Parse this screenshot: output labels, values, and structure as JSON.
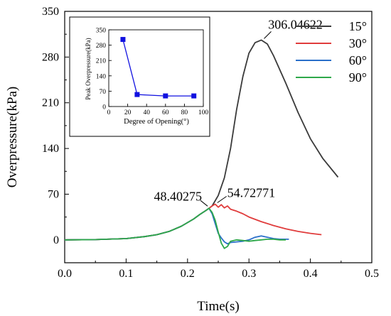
{
  "chart_data": [
    {
      "type": "line",
      "title": "",
      "xlabel": "Time(s)",
      "ylabel": "Overpressure(kPa)",
      "xlim": [
        0.0,
        0.5
      ],
      "ylim": [
        -35,
        350
      ],
      "x_ticks": [
        0.0,
        0.1,
        0.2,
        0.3,
        0.4,
        0.5
      ],
      "x_tick_labels": [
        "0.0",
        "0.1",
        "0.2",
        "0.3",
        "0.4",
        "0.5"
      ],
      "y_ticks": [
        0,
        70,
        140,
        210,
        280,
        350
      ],
      "y_tick_labels": [
        "0",
        "70",
        "140",
        "210",
        "280",
        "350"
      ],
      "legend_position": "top-right",
      "grid": false,
      "series": [
        {
          "name": "15°",
          "color": "#3a3a3a",
          "x": [
            0.0,
            0.05,
            0.1,
            0.13,
            0.15,
            0.17,
            0.19,
            0.21,
            0.22,
            0.23,
            0.235,
            0.24,
            0.25,
            0.26,
            0.27,
            0.28,
            0.29,
            0.3,
            0.31,
            0.32,
            0.33,
            0.34,
            0.36,
            0.38,
            0.4,
            0.42,
            0.445
          ],
          "y": [
            0,
            0.5,
            2,
            5,
            8,
            13,
            21,
            32,
            39,
            45,
            48.4,
            52,
            68,
            95,
            140,
            200,
            250,
            286,
            302,
            306.04622,
            300,
            282,
            240,
            195,
            155,
            125,
            96
          ]
        },
        {
          "name": "30°",
          "color": "#e03c3c",
          "x": [
            0.0,
            0.05,
            0.1,
            0.13,
            0.15,
            0.17,
            0.19,
            0.21,
            0.22,
            0.23,
            0.235,
            0.24,
            0.245,
            0.25,
            0.255,
            0.26,
            0.265,
            0.27,
            0.28,
            0.29,
            0.3,
            0.32,
            0.34,
            0.36,
            0.38,
            0.4,
            0.418
          ],
          "y": [
            0,
            0.5,
            2,
            5,
            8,
            13,
            21,
            32,
            39,
            45,
            48.4,
            52,
            54.72771,
            50,
            54,
            49,
            52,
            47,
            44,
            40,
            35,
            28,
            22,
            17,
            13,
            10,
            8
          ]
        },
        {
          "name": "60°",
          "color": "#2a6fc9",
          "x": [
            0.0,
            0.05,
            0.1,
            0.13,
            0.15,
            0.17,
            0.19,
            0.21,
            0.22,
            0.23,
            0.235,
            0.24,
            0.245,
            0.25,
            0.255,
            0.26,
            0.265,
            0.27,
            0.28,
            0.29,
            0.3,
            0.31,
            0.32,
            0.33,
            0.34,
            0.35,
            0.365
          ],
          "y": [
            0,
            0.5,
            2,
            5,
            8,
            13,
            21,
            32,
            39,
            45,
            48.4,
            40,
            25,
            10,
            3,
            -3,
            -6,
            -4,
            -3,
            -2,
            0,
            4,
            6,
            4,
            2,
            1,
            1
          ]
        },
        {
          "name": "90°",
          "color": "#2ea84a",
          "x": [
            0.0,
            0.05,
            0.1,
            0.13,
            0.15,
            0.17,
            0.19,
            0.21,
            0.22,
            0.23,
            0.235,
            0.24,
            0.245,
            0.25,
            0.255,
            0.26,
            0.265,
            0.27,
            0.28,
            0.29,
            0.3,
            0.31,
            0.32,
            0.33,
            0.34,
            0.35,
            0.36
          ],
          "y": [
            0,
            0.5,
            2,
            5,
            8,
            13,
            21,
            32,
            39,
            45,
            48.4,
            42,
            30,
            12,
            -5,
            -13,
            -10,
            -2,
            0,
            -1,
            -2,
            -1,
            0,
            1,
            1,
            0,
            0
          ]
        }
      ],
      "annotations": [
        {
          "text": "306.04622",
          "x": 0.32,
          "y": 306.04622
        },
        {
          "text": "54.72771",
          "x": 0.245,
          "y": 54.72771
        },
        {
          "text": "48.40275",
          "x": 0.235,
          "y": 48.40275
        }
      ]
    },
    {
      "type": "line",
      "title": "",
      "xlabel": "Degree of Opening(°)",
      "ylabel": "Peak Overpressure(kPa)",
      "xlim": [
        0,
        100
      ],
      "ylim": [
        0,
        350
      ],
      "x_ticks": [
        0,
        20,
        40,
        60,
        80,
        100
      ],
      "x_tick_labels": [
        "0",
        "20",
        "40",
        "60",
        "80",
        "100"
      ],
      "y_ticks": [
        0,
        70,
        140,
        210,
        280,
        350
      ],
      "y_tick_labels": [
        "0",
        "70",
        "140",
        "210",
        "280",
        "350"
      ],
      "series": [
        {
          "color": "#1010e0",
          "marker": "square",
          "x": [
            15,
            30,
            60,
            90
          ],
          "y": [
            306.04622,
            54.72771,
            48.40275,
            48.40275
          ]
        }
      ]
    }
  ]
}
